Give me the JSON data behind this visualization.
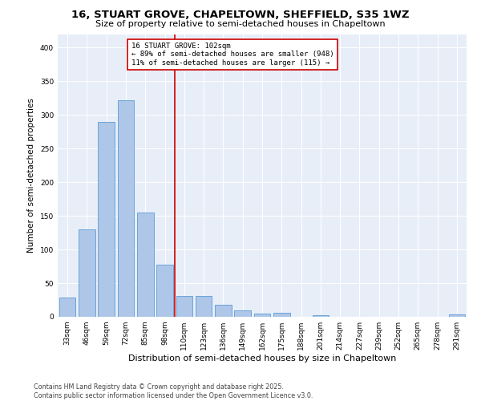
{
  "title": "16, STUART GROVE, CHAPELTOWN, SHEFFIELD, S35 1WZ",
  "subtitle": "Size of property relative to semi-detached houses in Chapeltown",
  "xlabel": "Distribution of semi-detached houses by size in Chapeltown",
  "ylabel": "Number of semi-detached properties",
  "categories": [
    "33sqm",
    "46sqm",
    "59sqm",
    "72sqm",
    "85sqm",
    "98sqm",
    "110sqm",
    "123sqm",
    "136sqm",
    "149sqm",
    "162sqm",
    "175sqm",
    "188sqm",
    "201sqm",
    "214sqm",
    "227sqm",
    "239sqm",
    "252sqm",
    "265sqm",
    "278sqm",
    "291sqm"
  ],
  "values": [
    29,
    130,
    289,
    322,
    155,
    77,
    31,
    31,
    18,
    10,
    5,
    6,
    0,
    2,
    0,
    0,
    0,
    0,
    0,
    0,
    3
  ],
  "bar_color": "#aec6e8",
  "bar_edge_color": "#5b9bd5",
  "vline_x": 5.5,
  "vline_color": "#cc0000",
  "annotation_text": "16 STUART GROVE: 102sqm\n← 89% of semi-detached houses are smaller (948)\n11% of semi-detached houses are larger (115) →",
  "annotation_box_color": "#ffffff",
  "annotation_box_edge": "#cc0000",
  "ylim": [
    0,
    420
  ],
  "yticks": [
    0,
    50,
    100,
    150,
    200,
    250,
    300,
    350,
    400
  ],
  "background_color": "#e8eef8",
  "footer_line1": "Contains HM Land Registry data © Crown copyright and database right 2025.",
  "footer_line2": "Contains public sector information licensed under the Open Government Licence v3.0.",
  "title_fontsize": 9.5,
  "subtitle_fontsize": 8,
  "xlabel_fontsize": 8,
  "ylabel_fontsize": 7.5,
  "tick_fontsize": 6.5,
  "annotation_fontsize": 6.5,
  "footer_fontsize": 5.8
}
